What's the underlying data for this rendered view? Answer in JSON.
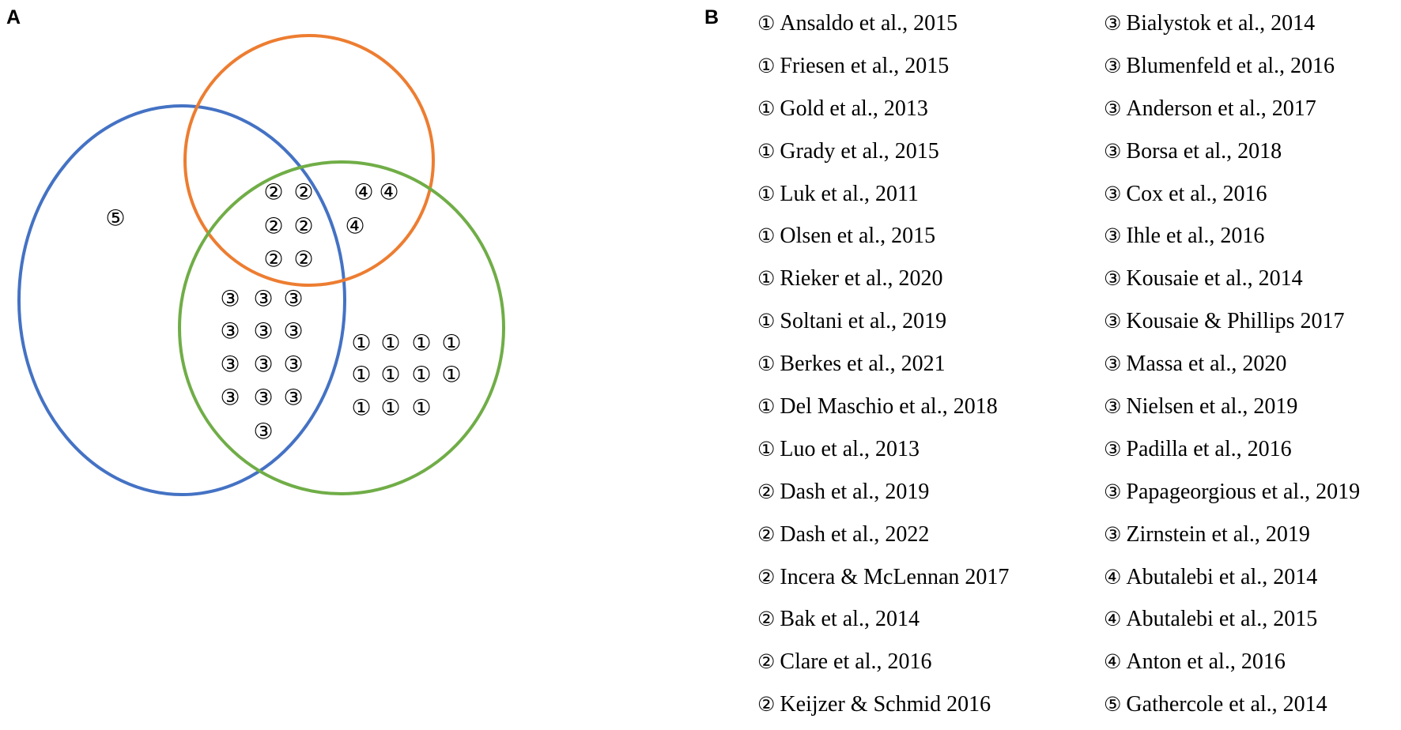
{
  "panels": {
    "a": "A",
    "b": "B"
  },
  "venn": {
    "circle_colors": {
      "blue": "#4472C4",
      "orange": "#ED7D31",
      "green": "#70AD47"
    },
    "markers": [
      "⑤",
      "②",
      "②",
      "②",
      "②",
      "②",
      "②",
      "④",
      "④",
      "④",
      "③",
      "③",
      "③",
      "③",
      "③",
      "③",
      "③",
      "③",
      "③",
      "③",
      "③",
      "③",
      "③",
      "①",
      "①",
      "①",
      "①",
      "①",
      "①",
      "①",
      "①",
      "①",
      "①",
      "①"
    ]
  },
  "references": {
    "left": [
      {
        "mark": "①",
        "text": "Ansaldo et al., 2015"
      },
      {
        "mark": "①",
        "text": "Friesen et al., 2015"
      },
      {
        "mark": "①",
        "text": "Gold et al., 2013"
      },
      {
        "mark": "①",
        "text": "Grady et al., 2015"
      },
      {
        "mark": "①",
        "text": "Luk et al., 2011"
      },
      {
        "mark": "①",
        "text": "Olsen et al., 2015"
      },
      {
        "mark": "①",
        "text": "Rieker et al., 2020"
      },
      {
        "mark": "①",
        "text": "Soltani et al., 2019"
      },
      {
        "mark": "①",
        "text": "Berkes et al., 2021"
      },
      {
        "mark": "①",
        "text": "Del Maschio et al., 2018"
      },
      {
        "mark": "①",
        "text": "Luo et al., 2013"
      },
      {
        "mark": "②",
        "text": "Dash et al., 2019"
      },
      {
        "mark": "②",
        "text": "Dash et al., 2022"
      },
      {
        "mark": "②",
        "text": "Incera & McLennan 2017"
      },
      {
        "mark": "②",
        "text": "Bak et al., 2014"
      },
      {
        "mark": "②",
        "text": "Clare et al., 2016"
      },
      {
        "mark": "②",
        "text": "Keijzer & Schmid 2016"
      }
    ],
    "right": [
      {
        "mark": "③",
        "text": "Bialystok et al., 2014"
      },
      {
        "mark": "③",
        "text": "Blumenfeld et al., 2016"
      },
      {
        "mark": "③",
        "text": "Anderson et al., 2017"
      },
      {
        "mark": "③",
        "text": "Borsa et al., 2018"
      },
      {
        "mark": "③",
        "text": "Cox et al., 2016"
      },
      {
        "mark": "③",
        "text": "Ihle et al., 2016"
      },
      {
        "mark": "③",
        "text": "Kousaie et al., 2014"
      },
      {
        "mark": "③",
        "text": "Kousaie & Phillips 2017"
      },
      {
        "mark": "③",
        "text": "Massa et al., 2020"
      },
      {
        "mark": "③",
        "text": "Nielsen et al., 2019"
      },
      {
        "mark": "③",
        "text": "Padilla et al., 2016"
      },
      {
        "mark": "③",
        "text": "Papageorgious et al., 2019"
      },
      {
        "mark": "③",
        "text": "Zirnstein et al., 2019"
      },
      {
        "mark": "④",
        "text": "Abutalebi et al., 2014"
      },
      {
        "mark": "④",
        "text": "Abutalebi et al., 2015"
      },
      {
        "mark": "④",
        "text": "Anton et al., 2016"
      },
      {
        "mark": "⑤",
        "text": "Gathercole et al., 2014"
      }
    ]
  }
}
